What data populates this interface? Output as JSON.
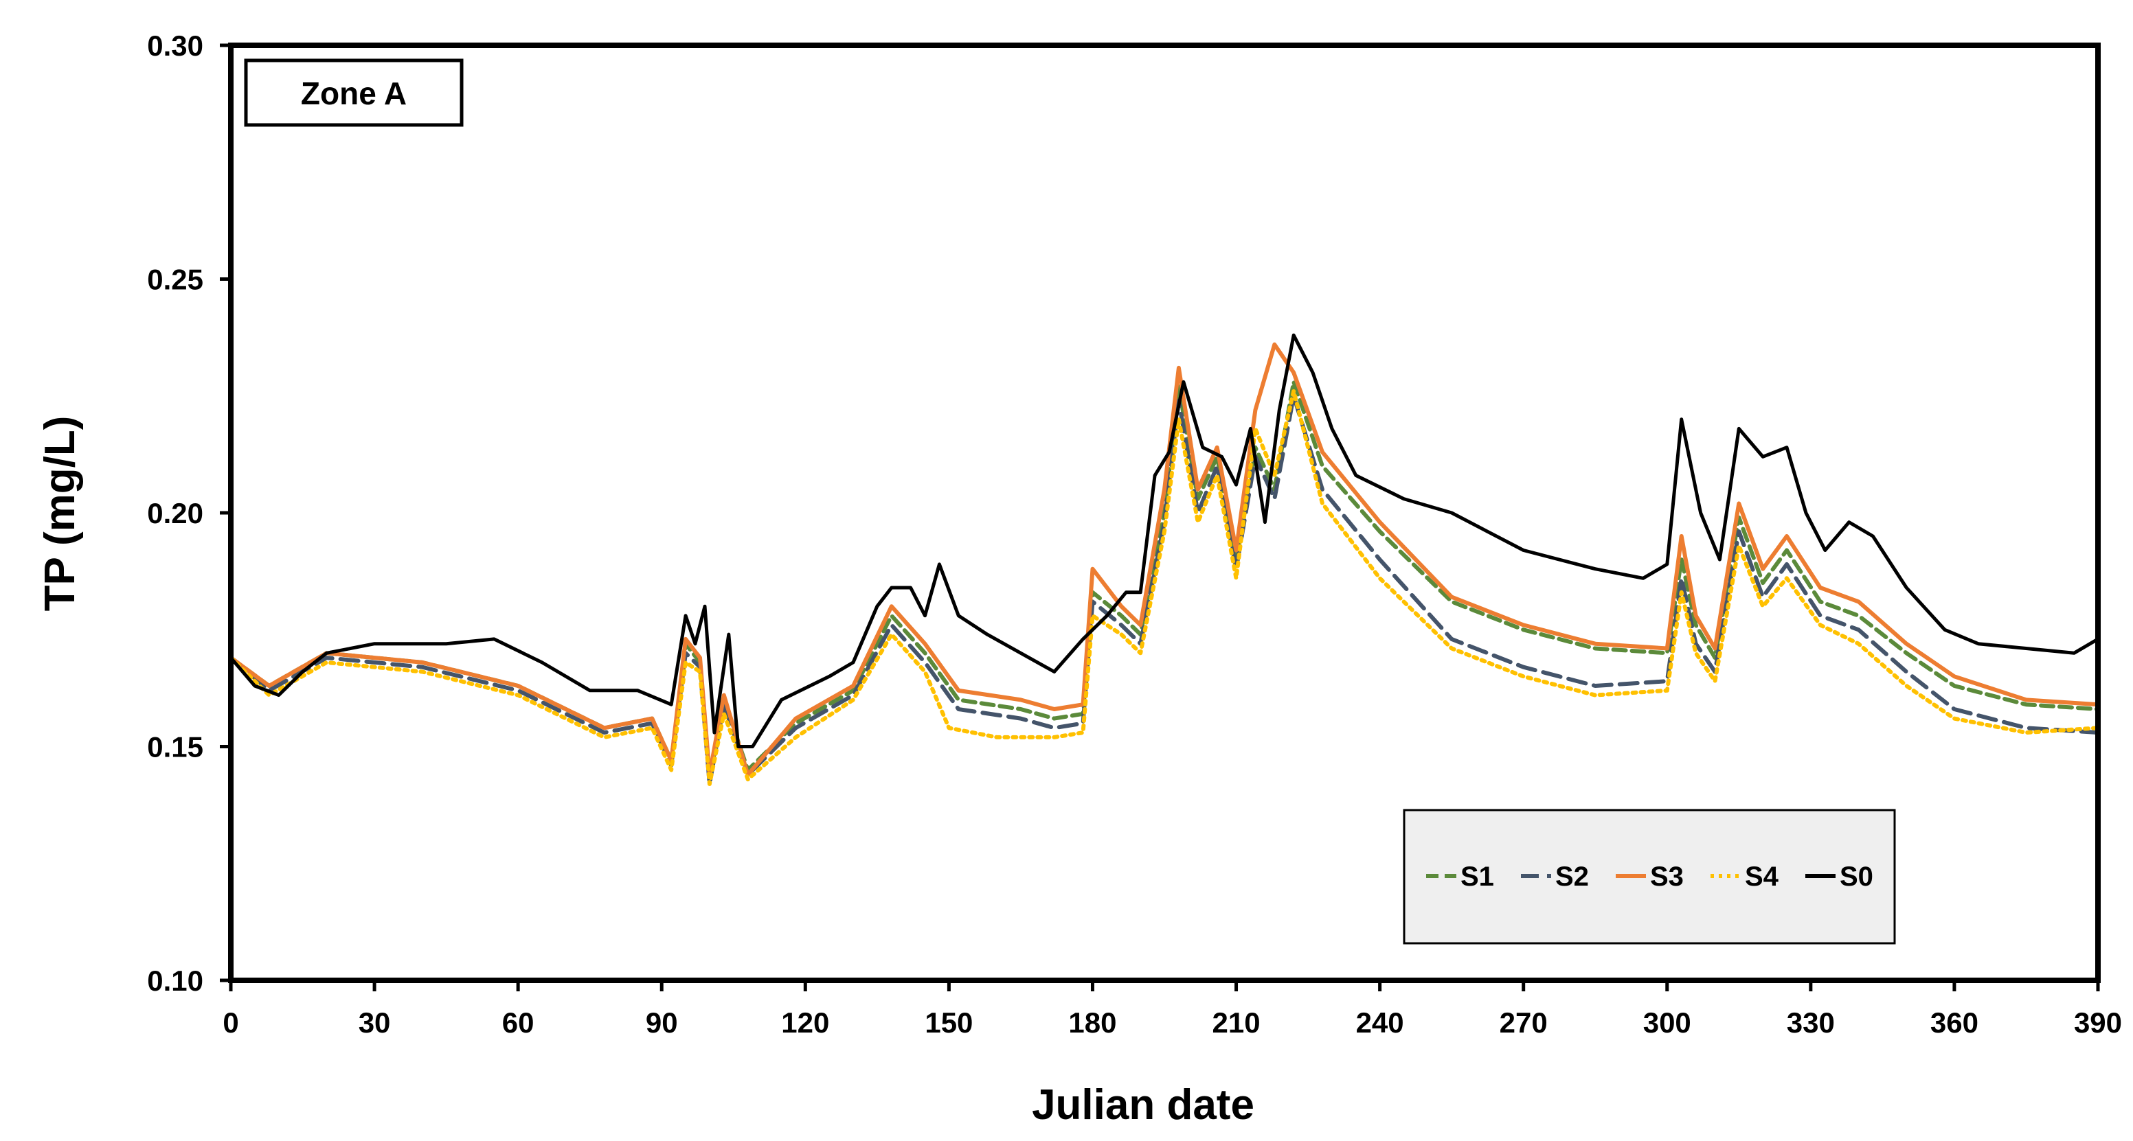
{
  "chart_data": {
    "type": "line",
    "title": "",
    "annotation": "Zone A",
    "xlabel": "Julian date",
    "ylabel": "TP (mg/L)",
    "xlim": [
      0,
      390
    ],
    "ylim": [
      0.1,
      0.3
    ],
    "x_ticks": [
      "0",
      "30",
      "60",
      "90",
      "120",
      "150",
      "180",
      "210",
      "240",
      "270",
      "300",
      "330",
      "360",
      "390"
    ],
    "y_ticks": [
      "0.10",
      "0.15",
      "0.20",
      "0.25",
      "0.30"
    ],
    "grid": false,
    "legend_position": "bottom-right",
    "series": [
      {
        "name": "S1",
        "color": "#5B8A3A",
        "dash": "dashed",
        "points": [
          [
            0,
            0.169
          ],
          [
            8,
            0.163
          ],
          [
            20,
            0.17
          ],
          [
            40,
            0.168
          ],
          [
            60,
            0.163
          ],
          [
            78,
            0.154
          ],
          [
            88,
            0.156
          ],
          [
            92,
            0.147
          ],
          [
            95,
            0.172
          ],
          [
            98,
            0.168
          ],
          [
            100,
            0.143
          ],
          [
            103,
            0.16
          ],
          [
            108,
            0.145
          ],
          [
            118,
            0.155
          ],
          [
            130,
            0.162
          ],
          [
            138,
            0.178
          ],
          [
            145,
            0.17
          ],
          [
            152,
            0.16
          ],
          [
            165,
            0.158
          ],
          [
            172,
            0.156
          ],
          [
            178,
            0.157
          ],
          [
            180,
            0.183
          ],
          [
            186,
            0.178
          ],
          [
            190,
            0.174
          ],
          [
            195,
            0.2
          ],
          [
            198,
            0.227
          ],
          [
            202,
            0.203
          ],
          [
            206,
            0.212
          ],
          [
            210,
            0.19
          ],
          [
            214,
            0.214
          ],
          [
            218,
            0.205
          ],
          [
            222,
            0.228
          ],
          [
            228,
            0.21
          ],
          [
            240,
            0.196
          ],
          [
            255,
            0.181
          ],
          [
            270,
            0.175
          ],
          [
            285,
            0.171
          ],
          [
            300,
            0.17
          ],
          [
            303,
            0.19
          ],
          [
            306,
            0.176
          ],
          [
            310,
            0.169
          ],
          [
            315,
            0.199
          ],
          [
            320,
            0.185
          ],
          [
            325,
            0.192
          ],
          [
            332,
            0.181
          ],
          [
            340,
            0.178
          ],
          [
            350,
            0.17
          ],
          [
            360,
            0.163
          ],
          [
            375,
            0.159
          ],
          [
            390,
            0.158
          ]
        ]
      },
      {
        "name": "S2",
        "color": "#44546A",
        "dash": "longdash",
        "points": [
          [
            0,
            0.169
          ],
          [
            8,
            0.162
          ],
          [
            20,
            0.169
          ],
          [
            40,
            0.167
          ],
          [
            60,
            0.162
          ],
          [
            78,
            0.153
          ],
          [
            88,
            0.155
          ],
          [
            92,
            0.146
          ],
          [
            95,
            0.17
          ],
          [
            98,
            0.167
          ],
          [
            100,
            0.142
          ],
          [
            103,
            0.159
          ],
          [
            108,
            0.144
          ],
          [
            118,
            0.154
          ],
          [
            130,
            0.161
          ],
          [
            138,
            0.176
          ],
          [
            145,
            0.168
          ],
          [
            152,
            0.158
          ],
          [
            165,
            0.156
          ],
          [
            172,
            0.154
          ],
          [
            178,
            0.155
          ],
          [
            180,
            0.181
          ],
          [
            186,
            0.176
          ],
          [
            190,
            0.172
          ],
          [
            195,
            0.198
          ],
          [
            198,
            0.224
          ],
          [
            202,
            0.2
          ],
          [
            206,
            0.21
          ],
          [
            210,
            0.188
          ],
          [
            214,
            0.212
          ],
          [
            218,
            0.203
          ],
          [
            222,
            0.225
          ],
          [
            228,
            0.205
          ],
          [
            240,
            0.19
          ],
          [
            255,
            0.173
          ],
          [
            270,
            0.167
          ],
          [
            285,
            0.163
          ],
          [
            300,
            0.164
          ],
          [
            303,
            0.186
          ],
          [
            306,
            0.172
          ],
          [
            310,
            0.166
          ],
          [
            315,
            0.196
          ],
          [
            320,
            0.182
          ],
          [
            325,
            0.189
          ],
          [
            332,
            0.178
          ],
          [
            340,
            0.175
          ],
          [
            350,
            0.166
          ],
          [
            360,
            0.158
          ],
          [
            375,
            0.154
          ],
          [
            390,
            0.153
          ]
        ]
      },
      {
        "name": "S3",
        "color": "#ED7D31",
        "dash": "solid",
        "points": [
          [
            0,
            0.169
          ],
          [
            8,
            0.163
          ],
          [
            20,
            0.17
          ],
          [
            40,
            0.168
          ],
          [
            60,
            0.163
          ],
          [
            78,
            0.154
          ],
          [
            88,
            0.156
          ],
          [
            92,
            0.147
          ],
          [
            95,
            0.173
          ],
          [
            98,
            0.169
          ],
          [
            100,
            0.144
          ],
          [
            103,
            0.161
          ],
          [
            108,
            0.144
          ],
          [
            118,
            0.156
          ],
          [
            130,
            0.163
          ],
          [
            138,
            0.18
          ],
          [
            145,
            0.172
          ],
          [
            152,
            0.162
          ],
          [
            165,
            0.16
          ],
          [
            172,
            0.158
          ],
          [
            178,
            0.159
          ],
          [
            180,
            0.188
          ],
          [
            186,
            0.18
          ],
          [
            190,
            0.176
          ],
          [
            195,
            0.205
          ],
          [
            198,
            0.231
          ],
          [
            202,
            0.205
          ],
          [
            206,
            0.214
          ],
          [
            210,
            0.192
          ],
          [
            214,
            0.222
          ],
          [
            218,
            0.236
          ],
          [
            222,
            0.23
          ],
          [
            228,
            0.213
          ],
          [
            240,
            0.198
          ],
          [
            255,
            0.182
          ],
          [
            270,
            0.176
          ],
          [
            285,
            0.172
          ],
          [
            300,
            0.171
          ],
          [
            303,
            0.195
          ],
          [
            306,
            0.178
          ],
          [
            310,
            0.171
          ],
          [
            315,
            0.202
          ],
          [
            320,
            0.188
          ],
          [
            325,
            0.195
          ],
          [
            332,
            0.184
          ],
          [
            340,
            0.181
          ],
          [
            350,
            0.172
          ],
          [
            360,
            0.165
          ],
          [
            375,
            0.16
          ],
          [
            390,
            0.159
          ]
        ]
      },
      {
        "name": "S4",
        "color": "#FFC000",
        "dash": "dotted",
        "points": [
          [
            0,
            0.169
          ],
          [
            8,
            0.161
          ],
          [
            20,
            0.168
          ],
          [
            40,
            0.166
          ],
          [
            60,
            0.161
          ],
          [
            78,
            0.152
          ],
          [
            88,
            0.154
          ],
          [
            92,
            0.145
          ],
          [
            95,
            0.168
          ],
          [
            98,
            0.166
          ],
          [
            100,
            0.142
          ],
          [
            103,
            0.157
          ],
          [
            108,
            0.143
          ],
          [
            118,
            0.152
          ],
          [
            130,
            0.16
          ],
          [
            138,
            0.174
          ],
          [
            145,
            0.166
          ],
          [
            150,
            0.154
          ],
          [
            160,
            0.152
          ],
          [
            172,
            0.152
          ],
          [
            178,
            0.153
          ],
          [
            180,
            0.178
          ],
          [
            186,
            0.174
          ],
          [
            190,
            0.17
          ],
          [
            195,
            0.196
          ],
          [
            198,
            0.22
          ],
          [
            202,
            0.198
          ],
          [
            206,
            0.208
          ],
          [
            210,
            0.186
          ],
          [
            214,
            0.218
          ],
          [
            218,
            0.208
          ],
          [
            222,
            0.226
          ],
          [
            228,
            0.202
          ],
          [
            240,
            0.186
          ],
          [
            255,
            0.171
          ],
          [
            270,
            0.165
          ],
          [
            285,
            0.161
          ],
          [
            300,
            0.162
          ],
          [
            303,
            0.183
          ],
          [
            306,
            0.17
          ],
          [
            310,
            0.164
          ],
          [
            315,
            0.193
          ],
          [
            320,
            0.18
          ],
          [
            325,
            0.186
          ],
          [
            332,
            0.176
          ],
          [
            340,
            0.172
          ],
          [
            350,
            0.163
          ],
          [
            360,
            0.156
          ],
          [
            375,
            0.153
          ],
          [
            390,
            0.154
          ]
        ]
      },
      {
        "name": "S0",
        "color": "#000000",
        "dash": "solid",
        "points": [
          [
            0,
            0.169
          ],
          [
            5,
            0.163
          ],
          [
            10,
            0.161
          ],
          [
            15,
            0.166
          ],
          [
            20,
            0.17
          ],
          [
            30,
            0.172
          ],
          [
            45,
            0.172
          ],
          [
            55,
            0.173
          ],
          [
            65,
            0.168
          ],
          [
            75,
            0.162
          ],
          [
            85,
            0.162
          ],
          [
            92,
            0.159
          ],
          [
            95,
            0.178
          ],
          [
            97,
            0.172
          ],
          [
            99,
            0.18
          ],
          [
            101,
            0.153
          ],
          [
            104,
            0.174
          ],
          [
            106,
            0.15
          ],
          [
            109,
            0.15
          ],
          [
            115,
            0.16
          ],
          [
            125,
            0.165
          ],
          [
            130,
            0.168
          ],
          [
            135,
            0.18
          ],
          [
            138,
            0.184
          ],
          [
            142,
            0.184
          ],
          [
            145,
            0.178
          ],
          [
            148,
            0.189
          ],
          [
            152,
            0.178
          ],
          [
            158,
            0.174
          ],
          [
            165,
            0.17
          ],
          [
            172,
            0.166
          ],
          [
            178,
            0.173
          ],
          [
            183,
            0.178
          ],
          [
            187,
            0.183
          ],
          [
            190,
            0.183
          ],
          [
            193,
            0.208
          ],
          [
            196,
            0.213
          ],
          [
            199,
            0.228
          ],
          [
            203,
            0.214
          ],
          [
            207,
            0.212
          ],
          [
            210,
            0.206
          ],
          [
            213,
            0.218
          ],
          [
            216,
            0.198
          ],
          [
            219,
            0.222
          ],
          [
            222,
            0.238
          ],
          [
            226,
            0.23
          ],
          [
            230,
            0.218
          ],
          [
            235,
            0.208
          ],
          [
            245,
            0.203
          ],
          [
            255,
            0.2
          ],
          [
            270,
            0.192
          ],
          [
            285,
            0.188
          ],
          [
            295,
            0.186
          ],
          [
            300,
            0.189
          ],
          [
            303,
            0.22
          ],
          [
            307,
            0.2
          ],
          [
            311,
            0.19
          ],
          [
            315,
            0.218
          ],
          [
            320,
            0.212
          ],
          [
            325,
            0.214
          ],
          [
            329,
            0.2
          ],
          [
            333,
            0.192
          ],
          [
            338,
            0.198
          ],
          [
            343,
            0.195
          ],
          [
            350,
            0.184
          ],
          [
            358,
            0.175
          ],
          [
            365,
            0.172
          ],
          [
            375,
            0.171
          ],
          [
            385,
            0.17
          ],
          [
            390,
            0.173
          ]
        ]
      }
    ]
  }
}
